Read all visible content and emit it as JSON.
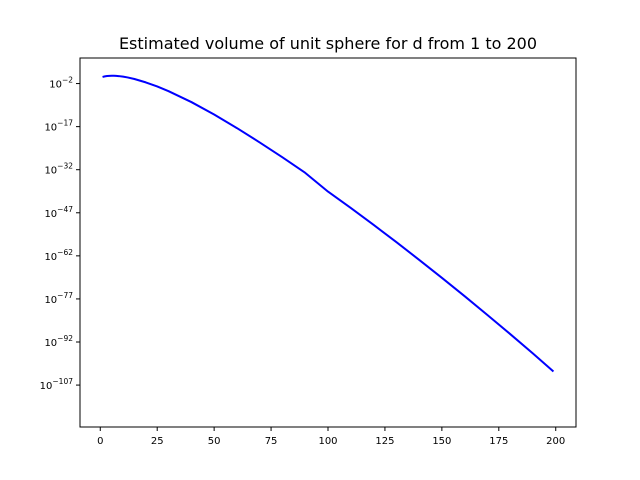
{
  "chart_data": {
    "type": "line",
    "title": "Estimated volume of unit sphere for d from 1 to 200",
    "xlabel": "",
    "ylabel": "",
    "xlim": [
      -8.9,
      208.9
    ],
    "ylim_log10": [
      -121.6,
      6.9
    ],
    "yscale": "log",
    "grid": false,
    "legend": "none",
    "x_ticks": [
      0,
      25,
      50,
      75,
      100,
      125,
      150,
      175,
      200
    ],
    "x_tick_labels": [
      "0",
      "25",
      "50",
      "75",
      "100",
      "125",
      "150",
      "175",
      "200"
    ],
    "y_ticks": [
      {
        "exp": -2,
        "label": "10",
        "sup": "−2"
      },
      {
        "exp": -17,
        "label": "10",
        "sup": "−17"
      },
      {
        "exp": -32,
        "label": "10",
        "sup": "−32"
      },
      {
        "exp": -47,
        "label": "10",
        "sup": "−47"
      },
      {
        "exp": -62,
        "label": "10",
        "sup": "−62"
      },
      {
        "exp": -77,
        "label": "10",
        "sup": "−77"
      },
      {
        "exp": -92,
        "label": "10",
        "sup": "−92"
      },
      {
        "exp": -107,
        "label": "10",
        "sup": "−107"
      }
    ],
    "series": [
      {
        "color": "#0000ff",
        "x": [
          1,
          2,
          3,
          4,
          5,
          6,
          7,
          8,
          10,
          12,
          15,
          20,
          25,
          30,
          40,
          50,
          60,
          70,
          80,
          90,
          100,
          110,
          120,
          130,
          140,
          150,
          160,
          170,
          180,
          190,
          199
        ],
        "y": [
          "2",
          "3.14",
          "4.19",
          "4.93",
          "5.26",
          "5.17",
          "4.72",
          "4.06",
          "2.55",
          "1.34",
          "0.381",
          "0.0258",
          "9.6e-4",
          "2.2e-5",
          "3.6e-9",
          "1.7e-13",
          "3.1e-18",
          "3.2e-23",
          "2.0e-28",
          "8.0e-34",
          "2.4e-40",
          "4.7e-46",
          "6.4e-52",
          "6.2e-58",
          "4.3e-64",
          "2.3e-70",
          "9.0e-77",
          "2.6e-83",
          "5.8e-90",
          "9.8e-97",
          "5.1e-103"
        ]
      }
    ]
  }
}
